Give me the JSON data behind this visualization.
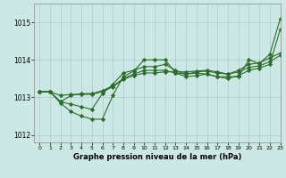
{
  "title": "Graphe pression niveau de la mer (hPa)",
  "xlim": [
    -0.5,
    23
  ],
  "ylim": [
    1011.8,
    1015.5
  ],
  "yticks": [
    1012,
    1013,
    1014,
    1015
  ],
  "xticks": [
    0,
    1,
    2,
    3,
    4,
    5,
    6,
    7,
    8,
    9,
    10,
    11,
    12,
    13,
    14,
    15,
    16,
    17,
    18,
    19,
    20,
    21,
    22,
    23
  ],
  "bg_color": "#cce8e4",
  "grid_color": "#aacccc",
  "line_color": "#2d6b2d",
  "series": [
    [
      1013.15,
      1013.15,
      1012.85,
      1012.62,
      1012.5,
      1012.42,
      1012.42,
      1013.05,
      1013.55,
      1013.7,
      1014.0,
      1014.0,
      1014.0,
      1013.65,
      1013.55,
      1013.58,
      1013.62,
      1013.55,
      1013.55,
      1013.55,
      1014.0,
      1013.9,
      1014.15,
      1015.1
    ],
    [
      1013.15,
      1013.15,
      1012.88,
      1013.05,
      1013.1,
      1013.1,
      1013.18,
      1013.3,
      1013.5,
      1013.62,
      1013.72,
      1013.72,
      1013.72,
      1013.65,
      1013.62,
      1013.68,
      1013.7,
      1013.65,
      1013.62,
      1013.72,
      1013.88,
      1013.92,
      1014.05,
      1014.18
    ],
    [
      1013.15,
      1013.15,
      1012.88,
      1012.82,
      1012.75,
      1012.68,
      1013.1,
      1013.35,
      1013.65,
      1013.72,
      1013.82,
      1013.82,
      1013.88,
      1013.72,
      1013.62,
      1013.65,
      1013.62,
      1013.55,
      1013.5,
      1013.58,
      1013.72,
      1013.78,
      1013.88,
      1014.82
    ],
    [
      1013.15,
      1013.15,
      1013.05,
      1013.08,
      1013.08,
      1013.08,
      1013.15,
      1013.28,
      1013.48,
      1013.58,
      1013.65,
      1013.65,
      1013.68,
      1013.68,
      1013.68,
      1013.7,
      1013.72,
      1013.68,
      1013.62,
      1013.68,
      1013.8,
      1013.84,
      1013.95,
      1014.12
    ]
  ]
}
